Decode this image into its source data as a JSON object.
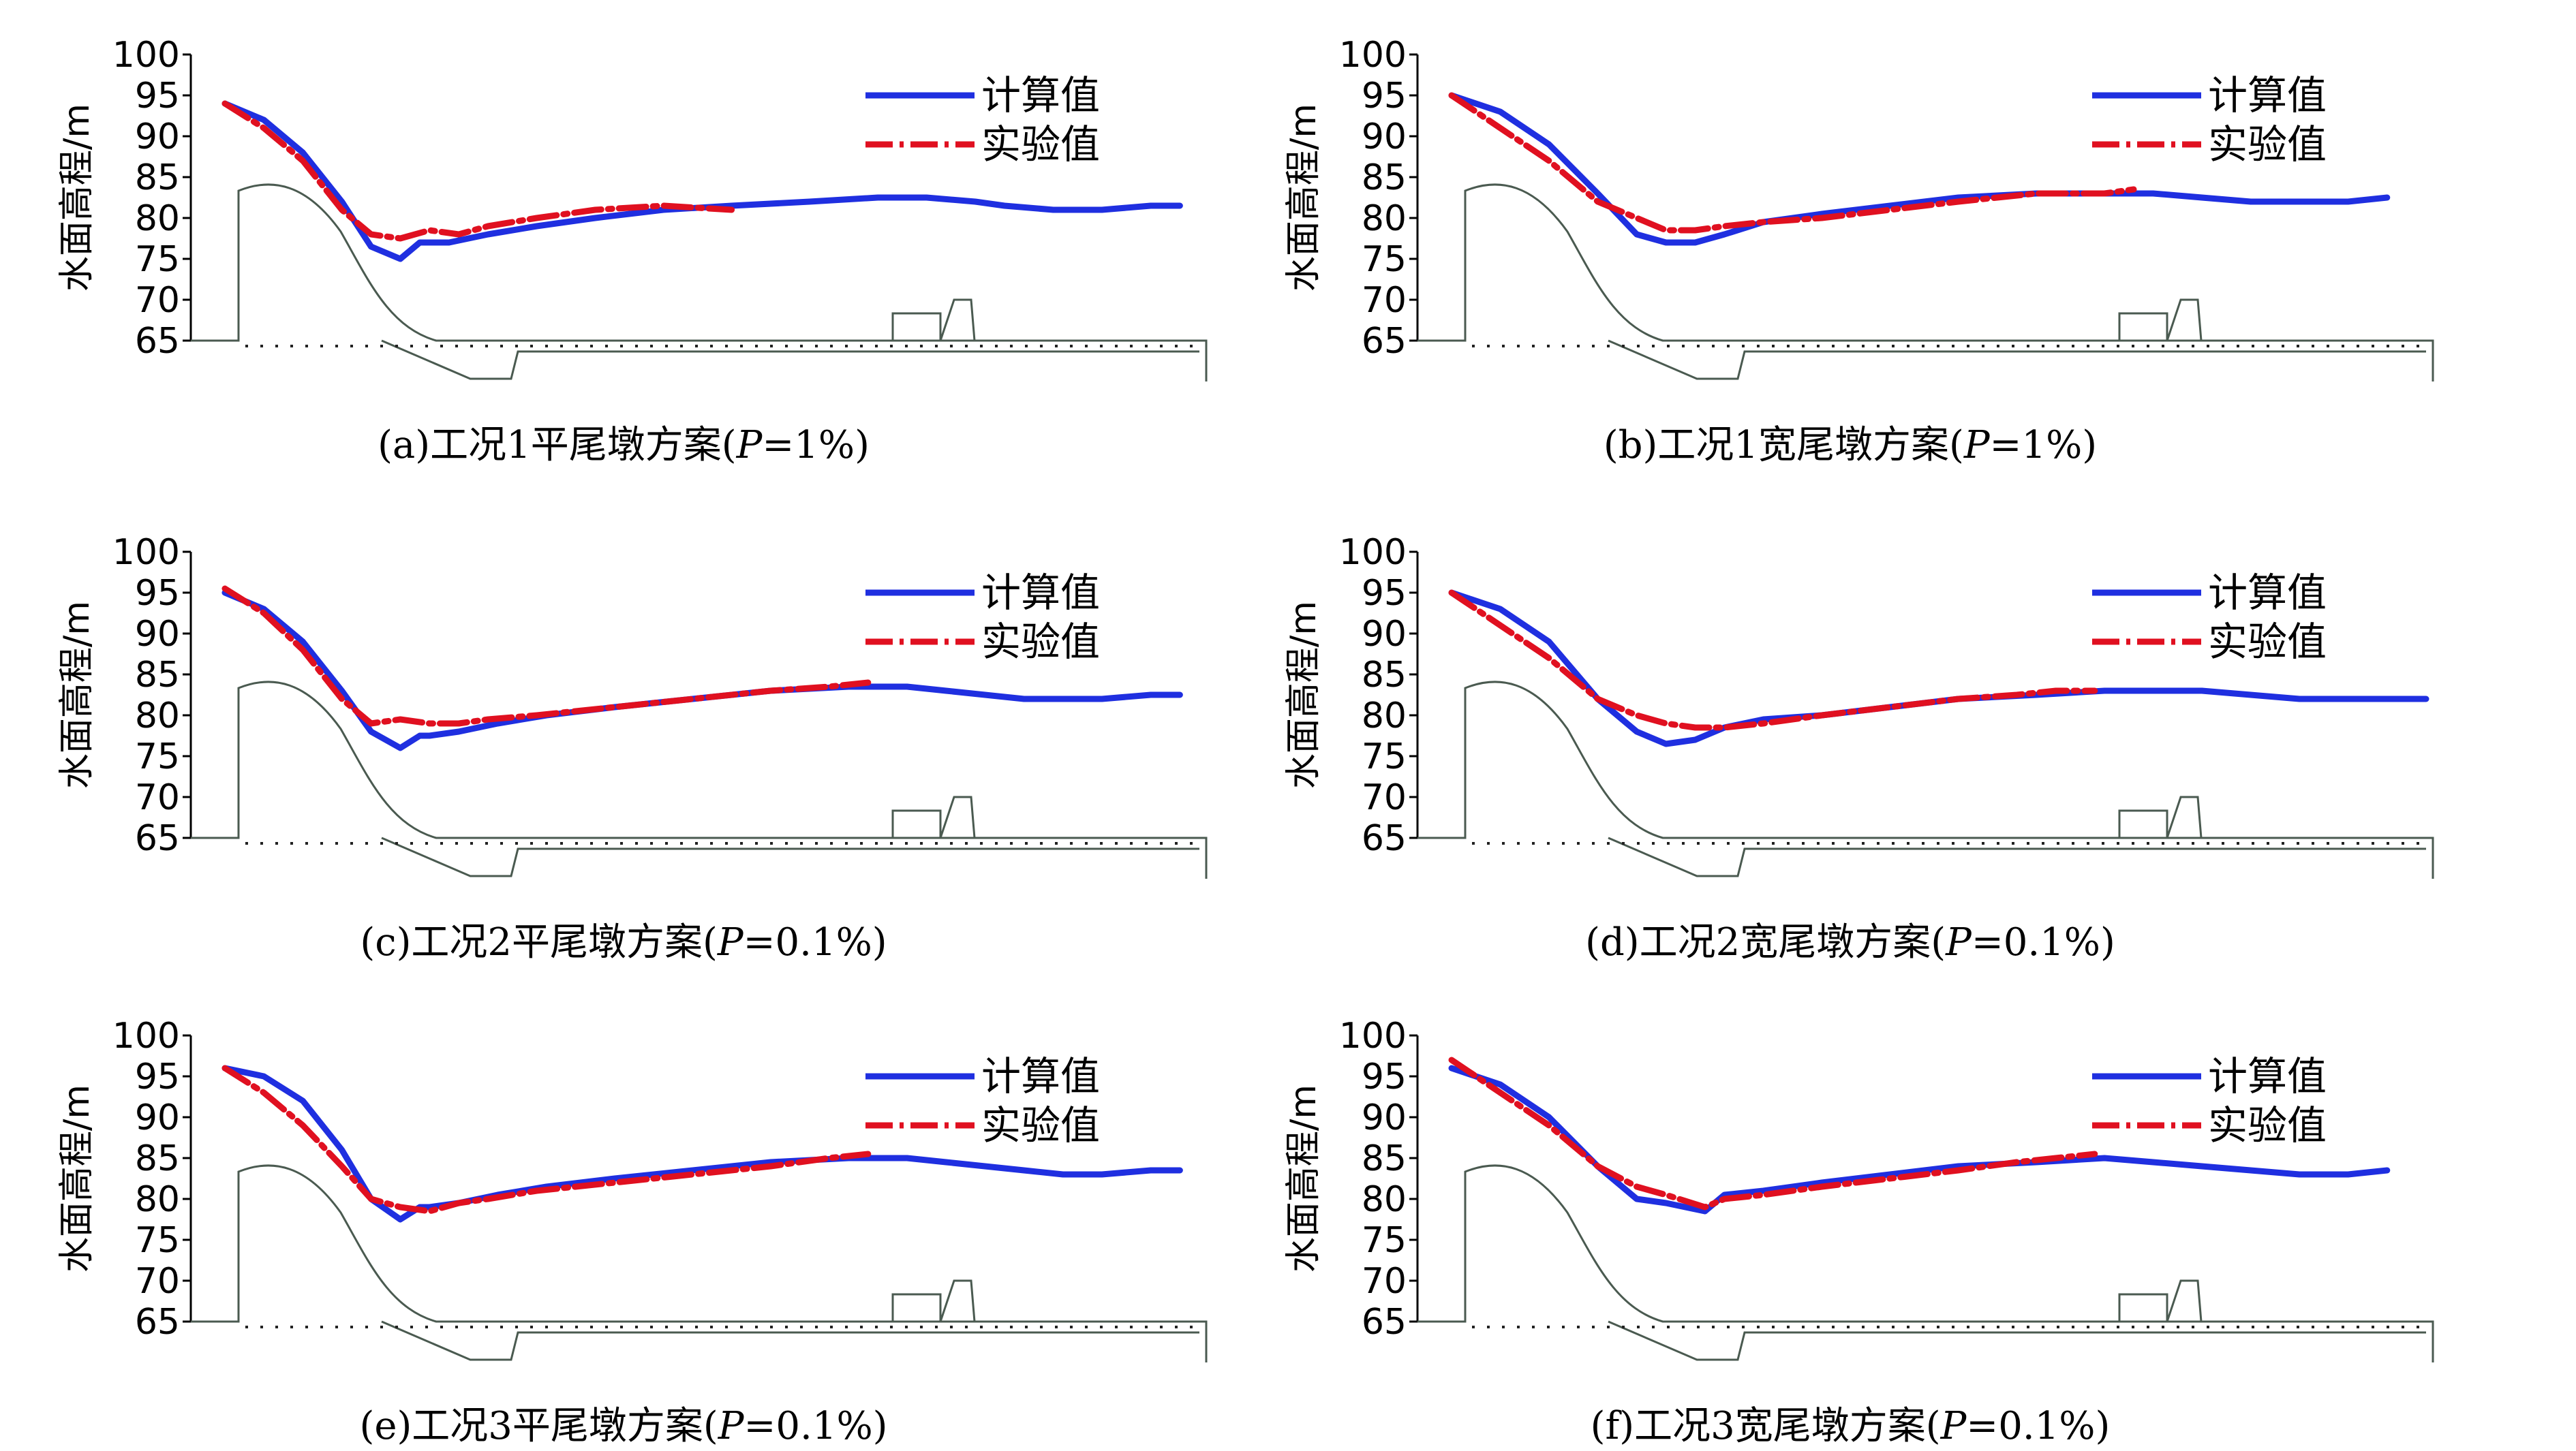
{
  "chart_data": [
    {
      "type": "line",
      "label": "(a)",
      "caption": {
        "prefix": "(a)工况1平尾墩方案(",
        "var": "P",
        "suffix": "=1%)"
      },
      "ylabel": "水面高程/m",
      "yticks": [
        100,
        95,
        90,
        85,
        80,
        75,
        70,
        65
      ],
      "ylim": [
        65,
        100
      ],
      "xlim": [
        0,
        100
      ],
      "series": [
        {
          "name": "计算值",
          "color": "#1f2fe0",
          "style": "solid",
          "x": [
            0,
            4,
            8,
            12,
            15,
            18,
            20,
            21,
            23,
            27,
            32,
            38,
            45,
            52,
            60,
            67,
            72,
            77,
            80,
            85,
            90,
            95,
            98
          ],
          "y": [
            94,
            92,
            88,
            82,
            76.5,
            75,
            77,
            77,
            77,
            78,
            79,
            80,
            81,
            81.5,
            82,
            82.5,
            82.5,
            82,
            81.5,
            81,
            81,
            81.5,
            81.5
          ]
        },
        {
          "name": "实验值",
          "color": "#e01020",
          "style": "dashdot",
          "x": [
            0,
            4,
            8,
            12,
            15,
            18,
            21,
            24,
            27,
            32,
            38,
            45,
            52
          ],
          "y": [
            94,
            91,
            87,
            81,
            78,
            77.5,
            78.5,
            78,
            79,
            80,
            81,
            81.5,
            81
          ]
        }
      ]
    },
    {
      "type": "line",
      "label": "(b)",
      "caption": {
        "prefix": "(b)工况1宽尾墩方案(",
        "var": "P",
        "suffix": "=1%)"
      },
      "ylabel": "水面高程/m",
      "yticks": [
        100,
        95,
        90,
        85,
        80,
        75,
        70,
        65
      ],
      "ylim": [
        65,
        100
      ],
      "xlim": [
        0,
        100
      ],
      "series": [
        {
          "name": "计算值",
          "color": "#1f2fe0",
          "style": "solid",
          "x": [
            0,
            5,
            10,
            15,
            19,
            22,
            25,
            28,
            32,
            38,
            45,
            52,
            60,
            67,
            72,
            77,
            82,
            87,
            92,
            96
          ],
          "y": [
            95,
            93,
            89,
            83,
            78,
            77,
            77,
            78,
            79.5,
            80.5,
            81.5,
            82.5,
            83,
            83,
            83,
            82.5,
            82,
            82,
            82,
            82.5
          ]
        },
        {
          "name": "实验值",
          "color": "#e01020",
          "style": "dashdot",
          "x": [
            0,
            5,
            10,
            15,
            19,
            22,
            25,
            28,
            32,
            38,
            45,
            52,
            60,
            67,
            70
          ],
          "y": [
            95,
            91,
            87,
            82,
            80,
            78.5,
            78.5,
            79,
            79.5,
            80,
            81,
            82,
            83,
            83,
            83.5
          ]
        }
      ]
    },
    {
      "type": "line",
      "label": "(c)",
      "caption": {
        "prefix": "(c)工况2平尾墩方案(",
        "var": "P",
        "suffix": "=0.1%)"
      },
      "ylabel": "水面高程/m",
      "yticks": [
        100,
        95,
        90,
        85,
        80,
        75,
        70,
        65
      ],
      "ylim": [
        65,
        100
      ],
      "xlim": [
        0,
        100
      ],
      "series": [
        {
          "name": "计算值",
          "color": "#1f2fe0",
          "style": "solid",
          "x": [
            0,
            4,
            8,
            12,
            15,
            18,
            20,
            21,
            24,
            28,
            33,
            40,
            48,
            56,
            64,
            70,
            74,
            78,
            82,
            86,
            90,
            95,
            98
          ],
          "y": [
            95,
            93,
            89,
            83,
            78,
            76,
            77.5,
            77.5,
            78,
            79,
            80,
            81,
            82,
            83,
            83.5,
            83.5,
            83,
            82.5,
            82,
            82,
            82,
            82.5,
            82.5
          ]
        },
        {
          "name": "实验值",
          "color": "#e01020",
          "style": "dashdot",
          "x": [
            0,
            4,
            8,
            12,
            15,
            18,
            21,
            24,
            27,
            32,
            40,
            48,
            56,
            62,
            66
          ],
          "y": [
            95.5,
            92.5,
            88,
            82,
            79,
            79.5,
            79,
            79,
            79.5,
            80,
            81,
            82,
            83,
            83.5,
            84
          ]
        }
      ]
    },
    {
      "type": "line",
      "label": "(d)",
      "caption": {
        "prefix": "(d)工况2宽尾墩方案(",
        "var": "P",
        "suffix": "=0.1%)"
      },
      "ylabel": "水面高程/m",
      "yticks": [
        100,
        95,
        90,
        85,
        80,
        75,
        70,
        65
      ],
      "ylim": [
        65,
        100
      ],
      "xlim": [
        0,
        100
      ],
      "series": [
        {
          "name": "计算值",
          "color": "#1f2fe0",
          "style": "solid",
          "x": [
            0,
            5,
            10,
            15,
            19,
            22,
            25,
            28,
            32,
            38,
            45,
            52,
            60,
            67,
            72,
            77,
            82,
            87,
            92,
            96,
            100
          ],
          "y": [
            95,
            93,
            89,
            82,
            78,
            76.5,
            77,
            78.5,
            79.5,
            80,
            81,
            82,
            82.5,
            83,
            83,
            83,
            82.5,
            82,
            82,
            82,
            82
          ]
        },
        {
          "name": "实验值",
          "color": "#e01020",
          "style": "dashdot",
          "x": [
            0,
            5,
            10,
            15,
            19,
            22,
            25,
            28,
            32,
            38,
            45,
            52,
            58,
            62,
            66
          ],
          "y": [
            95,
            91,
            87,
            82,
            80,
            79,
            78.5,
            78.5,
            79,
            80,
            81,
            82,
            82.5,
            83,
            83
          ]
        }
      ]
    },
    {
      "type": "line",
      "label": "(e)",
      "caption": {
        "prefix": "(e)工况3平尾墩方案(",
        "var": "P",
        "suffix": "=0.1%)"
      },
      "ylabel": "水面高程/m",
      "yticks": [
        100,
        95,
        90,
        85,
        80,
        75,
        70,
        65
      ],
      "ylim": [
        65,
        100
      ],
      "xlim": [
        0,
        100
      ],
      "series": [
        {
          "name": "计算值",
          "color": "#1f2fe0",
          "style": "solid",
          "x": [
            0,
            4,
            8,
            12,
            15,
            18,
            20,
            21,
            24,
            28,
            33,
            40,
            48,
            56,
            64,
            70,
            74,
            78,
            82,
            86,
            90,
            95,
            98
          ],
          "y": [
            96,
            95,
            92,
            86,
            80,
            77.5,
            79,
            79,
            79.5,
            80.5,
            81.5,
            82.5,
            83.5,
            84.5,
            85,
            85,
            84.5,
            84,
            83.5,
            83,
            83,
            83.5,
            83.5
          ]
        },
        {
          "name": "实验值",
          "color": "#e01020",
          "style": "dashdot",
          "x": [
            0,
            4,
            8,
            12,
            15,
            18,
            21,
            24,
            27,
            32,
            40,
            48,
            56,
            62,
            66
          ],
          "y": [
            96,
            93,
            89,
            84,
            80,
            79,
            78.5,
            79.5,
            80,
            81,
            82,
            83,
            84,
            85,
            85.5
          ]
        }
      ]
    },
    {
      "type": "line",
      "label": "(f)",
      "caption": {
        "prefix": "(f)工况3宽尾墩方案(",
        "var": "P",
        "suffix": "=0.1%)"
      },
      "ylabel": "水面高程/m",
      "yticks": [
        100,
        95,
        90,
        85,
        80,
        75,
        70,
        65
      ],
      "ylim": [
        65,
        100
      ],
      "xlim": [
        0,
        100
      ],
      "series": [
        {
          "name": "计算值",
          "color": "#1f2fe0",
          "style": "solid",
          "x": [
            0,
            5,
            10,
            15,
            19,
            22,
            26,
            28,
            32,
            38,
            45,
            52,
            60,
            67,
            72,
            77,
            82,
            87,
            92,
            96
          ],
          "y": [
            96,
            94,
            90,
            84,
            80,
            79.5,
            78.5,
            80.5,
            81,
            82,
            83,
            84,
            84.5,
            85,
            84.5,
            84,
            83.5,
            83,
            83,
            83.5
          ]
        },
        {
          "name": "实验值",
          "color": "#e01020",
          "style": "dashdot",
          "x": [
            0,
            5,
            10,
            15,
            19,
            22,
            26,
            28,
            32,
            38,
            45,
            52,
            58,
            62,
            66
          ],
          "y": [
            97,
            93,
            89,
            84,
            81.5,
            80.5,
            79,
            80,
            80.5,
            81.5,
            82.5,
            83.5,
            84.5,
            85,
            85.5
          ]
        }
      ]
    }
  ]
}
